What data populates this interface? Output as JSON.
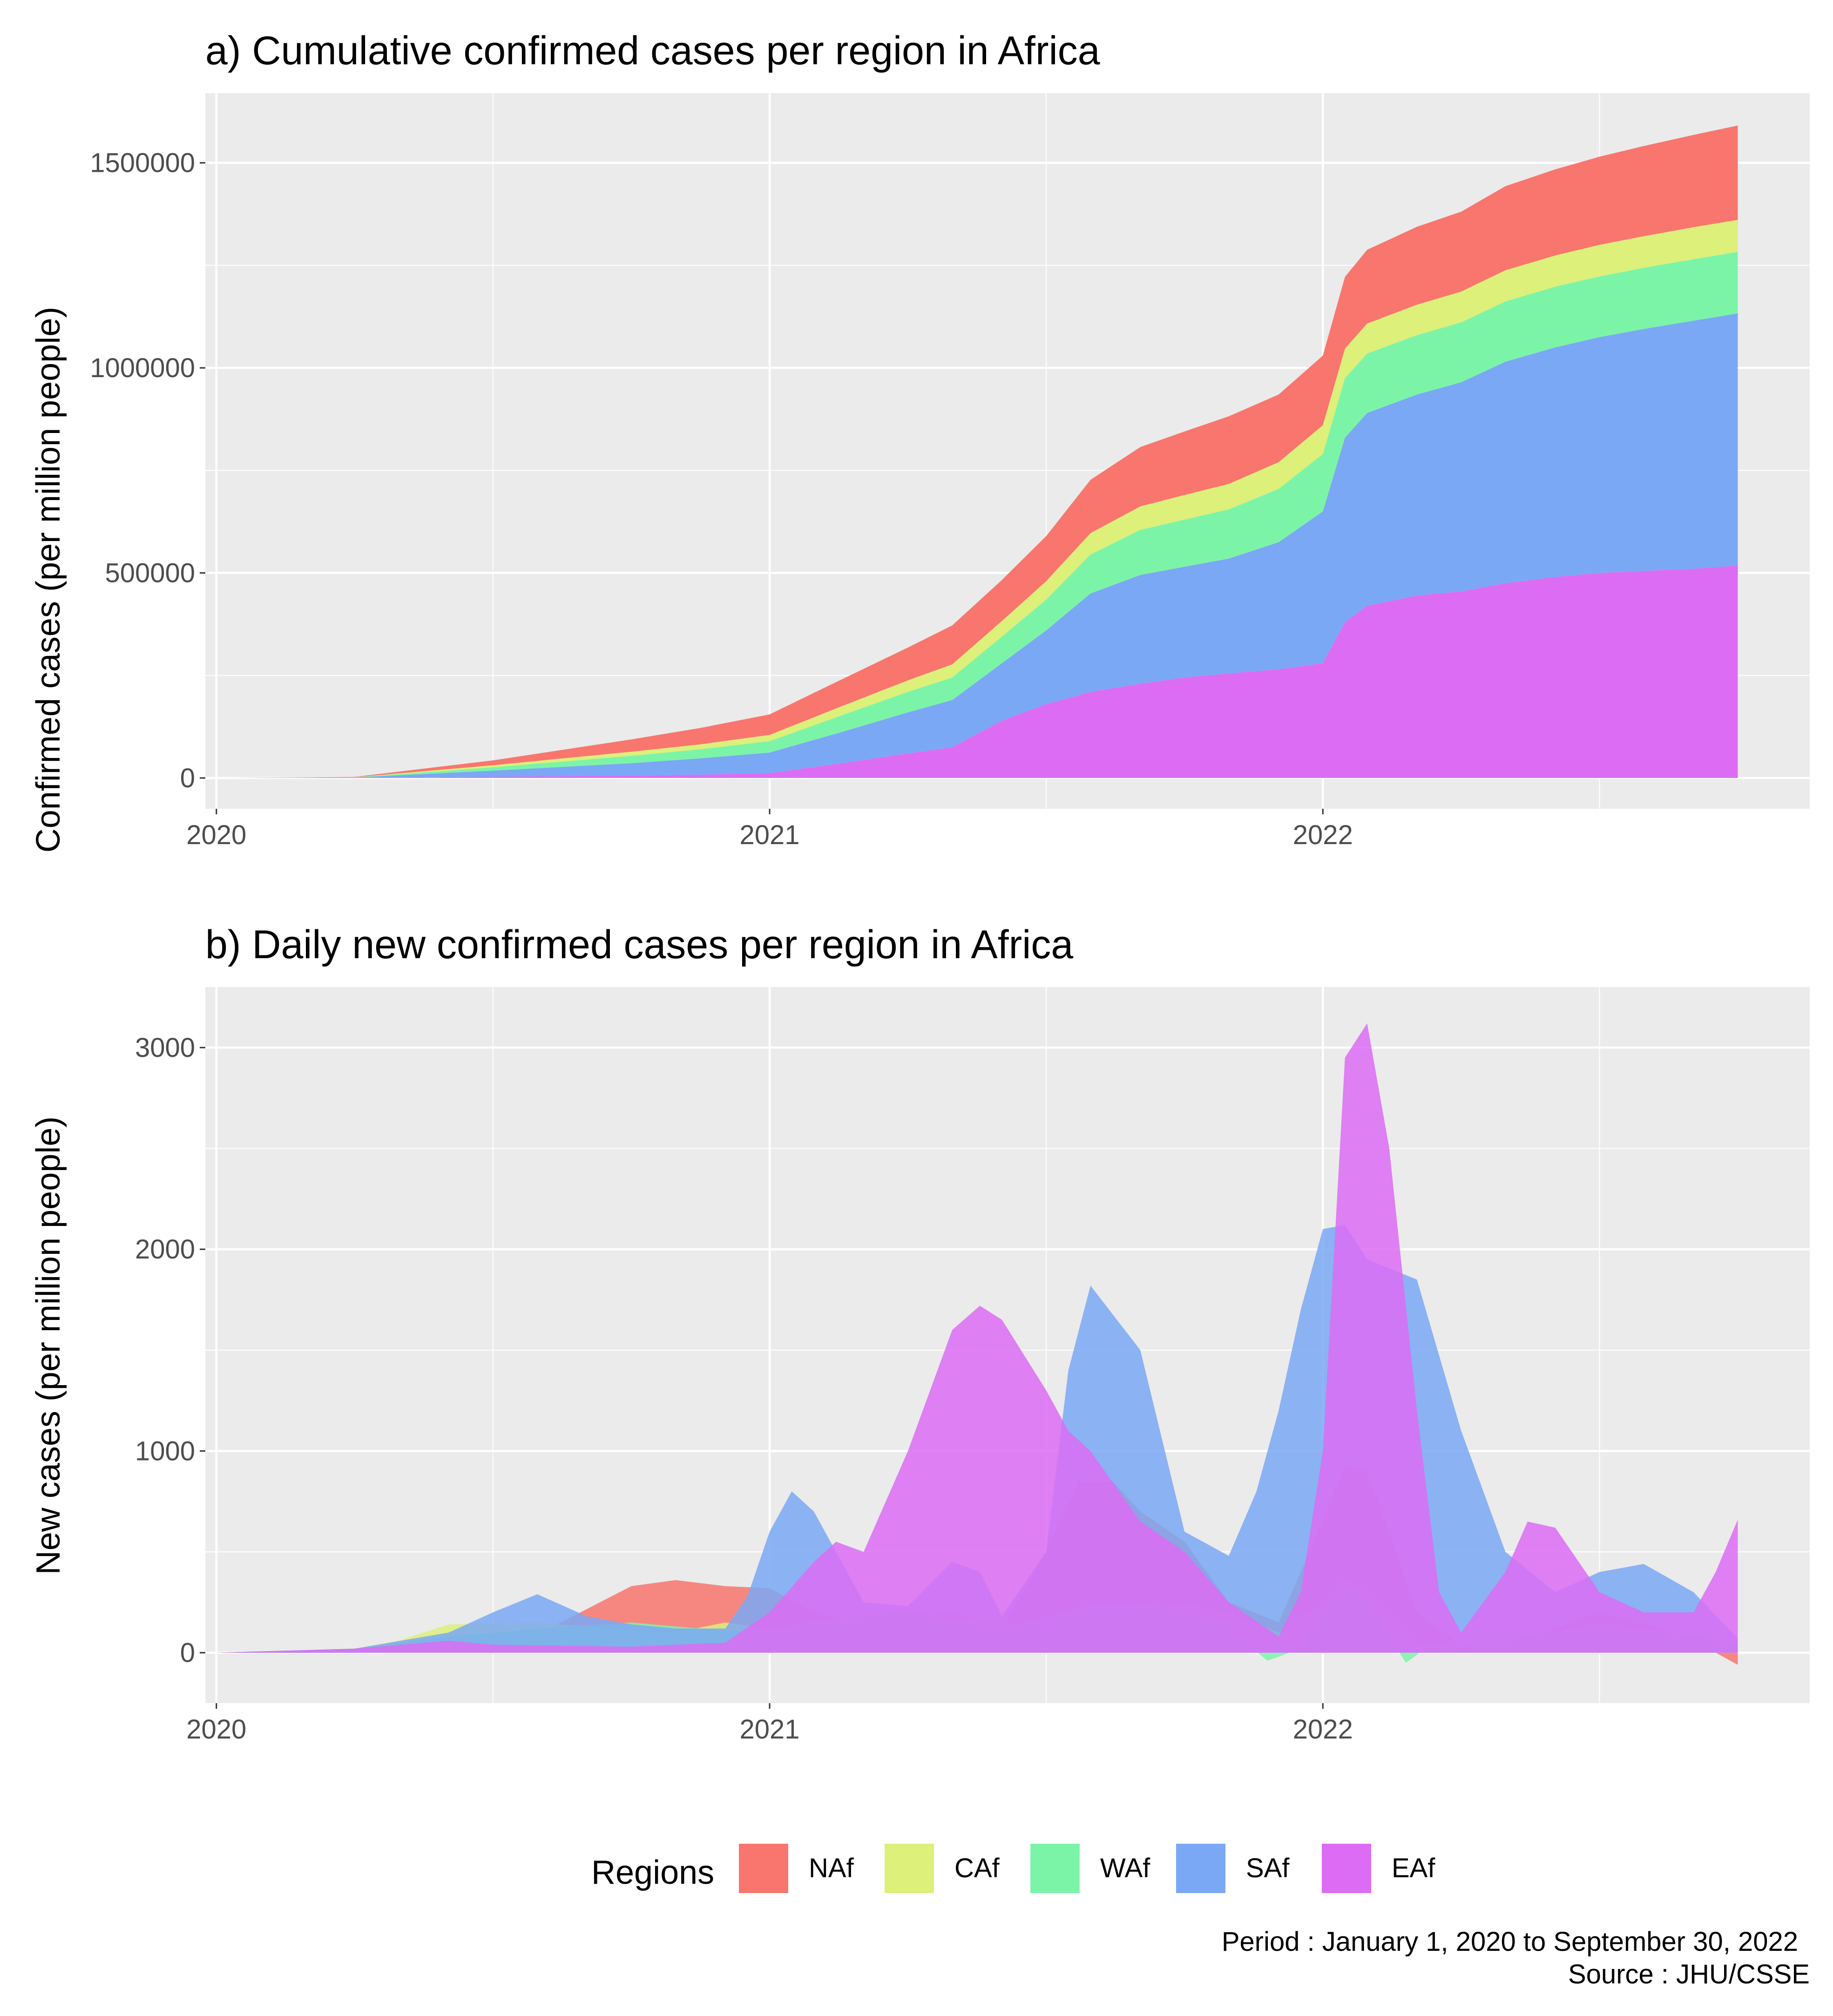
{
  "colors": {
    "NAf": "#f8766d",
    "CAf": "#dcf07a",
    "WAf": "#7cf4a8",
    "SAf": "#7aa8f4",
    "EAf": "#dc6cf4",
    "panel": "#ebebeb",
    "grid": "#ffffff"
  },
  "chart_data": [
    {
      "type": "area",
      "stacked": true,
      "title": "a) Cumulative confirmed cases per region in Africa",
      "xlabel": "",
      "ylabel": "Confirmed cases (per million people)",
      "xlim": [
        2019.98,
        2022.88
      ],
      "ylim": [
        -75000,
        1670000
      ],
      "x_ticks": [
        2020,
        2021,
        2022
      ],
      "y_ticks": [
        0,
        500000,
        1000000,
        1500000
      ],
      "x": [
        2020.0,
        2020.25,
        2020.5,
        2020.75,
        2020.875,
        2021.0,
        2021.125,
        2021.25,
        2021.33,
        2021.42,
        2021.5,
        2021.58,
        2021.67,
        2021.75,
        2021.83,
        2021.92,
        2022.0,
        2022.04,
        2022.08,
        2022.17,
        2022.25,
        2022.33,
        2022.42,
        2022.5,
        2022.58,
        2022.67,
        2022.75
      ],
      "series": [
        {
          "name": "EAf",
          "values": [
            0,
            500,
            3000,
            6000,
            8000,
            12000,
            35000,
            60000,
            75000,
            140000,
            180000,
            210000,
            230000,
            245000,
            255000,
            265000,
            280000,
            380000,
            420000,
            445000,
            455000,
            475000,
            490000,
            500000,
            505000,
            510000,
            518000
          ]
        },
        {
          "name": "SAf",
          "values": [
            0,
            800,
            15000,
            30000,
            40000,
            50000,
            75000,
            100000,
            115000,
            140000,
            180000,
            240000,
            265000,
            270000,
            280000,
            310000,
            370000,
            450000,
            470000,
            490000,
            510000,
            540000,
            560000,
            575000,
            590000,
            605000,
            615000
          ]
        },
        {
          "name": "WAf",
          "values": [
            0,
            300,
            8000,
            18000,
            22000,
            28000,
            40000,
            50000,
            55000,
            65000,
            75000,
            95000,
            110000,
            115000,
            120000,
            130000,
            140000,
            145000,
            145000,
            145000,
            146000,
            147000,
            148000,
            148000,
            149000,
            150000,
            150000
          ]
        },
        {
          "name": "CAf",
          "values": [
            0,
            200,
            5000,
            10000,
            12000,
            15000,
            22000,
            28000,
            32000,
            38000,
            45000,
            52000,
            57000,
            60000,
            62000,
            65000,
            70000,
            72000,
            73000,
            74000,
            75000,
            76000,
            76000,
            77000,
            77000,
            78000,
            78000
          ]
        },
        {
          "name": "NAf",
          "values": [
            0,
            800,
            12000,
            30000,
            40000,
            50000,
            65000,
            80000,
            95000,
            100000,
            110000,
            130000,
            145000,
            155000,
            165000,
            165000,
            170000,
            175000,
            180000,
            190000,
            195000,
            205000,
            210000,
            215000,
            220000,
            225000,
            230000
          ]
        }
      ]
    },
    {
      "type": "area",
      "stacked": false,
      "title": "b) Daily new confirmed cases per region in Africa",
      "xlabel": "",
      "ylabel": "New cases (per million people)",
      "xlim": [
        2019.98,
        2022.88
      ],
      "ylim": [
        -250,
        3300
      ],
      "x_ticks": [
        2020,
        2021,
        2022
      ],
      "y_ticks": [
        0,
        1000,
        2000,
        3000
      ],
      "series": [
        {
          "name": "NAf",
          "x": [
            2020.0,
            2020.25,
            2020.42,
            2020.58,
            2020.75,
            2020.83,
            2020.92,
            2021.0,
            2021.08,
            2021.17,
            2021.25,
            2021.33,
            2021.42,
            2021.5,
            2021.56,
            2021.62,
            2021.67,
            2021.75,
            2021.83,
            2021.92,
            2022.0,
            2022.04,
            2022.08,
            2022.17,
            2022.25,
            2022.33,
            2022.42,
            2022.5,
            2022.58,
            2022.67,
            2022.75
          ],
          "values": [
            0,
            20,
            60,
            90,
            330,
            360,
            330,
            320,
            200,
            150,
            200,
            180,
            120,
            500,
            850,
            850,
            700,
            550,
            250,
            150,
            650,
            920,
            900,
            200,
            40,
            30,
            120,
            200,
            150,
            60,
            -60
          ]
        },
        {
          "name": "CAf",
          "x": [
            2020.0,
            2020.25,
            2020.33,
            2020.42,
            2020.58,
            2020.75,
            2020.83,
            2020.92,
            2021.0,
            2021.17,
            2021.33,
            2021.42,
            2021.5,
            2021.67,
            2021.75,
            2021.83,
            2021.92,
            2022.0,
            2022.04,
            2022.08,
            2022.17,
            2022.25,
            2022.42,
            2022.5,
            2022.67,
            2022.75
          ],
          "values": [
            0,
            20,
            60,
            140,
            150,
            110,
            100,
            150,
            120,
            150,
            200,
            150,
            120,
            200,
            250,
            200,
            100,
            250,
            380,
            300,
            50,
            20,
            100,
            150,
            80,
            50
          ]
        },
        {
          "name": "WAf",
          "x": [
            2020.0,
            2020.25,
            2020.42,
            2020.58,
            2020.75,
            2020.83,
            2020.92,
            2021.0,
            2021.08,
            2021.17,
            2021.25,
            2021.33,
            2021.42,
            2021.5,
            2021.58,
            2021.67,
            2021.75,
            2021.83,
            2021.9,
            2021.96,
            2022.0,
            2022.04,
            2022.08,
            2022.15,
            2022.2,
            2022.33,
            2022.42,
            2022.5,
            2022.58,
            2022.67,
            2022.75
          ],
          "values": [
            0,
            20,
            80,
            120,
            150,
            130,
            110,
            110,
            160,
            180,
            200,
            150,
            120,
            180,
            240,
            250,
            200,
            120,
            -40,
            20,
            200,
            300,
            250,
            -50,
            50,
            60,
            100,
            120,
            100,
            60,
            30
          ]
        },
        {
          "name": "SAf",
          "x": [
            2020.0,
            2020.25,
            2020.42,
            2020.5,
            2020.58,
            2020.67,
            2020.75,
            2020.83,
            2020.92,
            2020.96,
            2021.0,
            2021.04,
            2021.08,
            2021.17,
            2021.25,
            2021.33,
            2021.38,
            2021.42,
            2021.5,
            2021.54,
            2021.58,
            2021.67,
            2021.75,
            2021.83,
            2021.88,
            2021.92,
            2021.96,
            2022.0,
            2022.04,
            2022.08,
            2022.17,
            2022.25,
            2022.33,
            2022.42,
            2022.5,
            2022.58,
            2022.67,
            2022.75
          ],
          "values": [
            0,
            20,
            100,
            200,
            290,
            180,
            140,
            120,
            120,
            280,
            600,
            800,
            700,
            250,
            230,
            450,
            400,
            180,
            500,
            1400,
            1820,
            1500,
            600,
            480,
            800,
            1200,
            1700,
            2100,
            2120,
            1950,
            1850,
            1100,
            500,
            300,
            400,
            440,
            300,
            70
          ]
        },
        {
          "name": "EAf",
          "x": [
            2020.0,
            2020.25,
            2020.42,
            2020.5,
            2020.75,
            2020.92,
            2021.0,
            2021.08,
            2021.12,
            2021.17,
            2021.25,
            2021.33,
            2021.38,
            2021.42,
            2021.5,
            2021.54,
            2021.58,
            2021.67,
            2021.75,
            2021.83,
            2021.92,
            2021.96,
            2022.0,
            2022.04,
            2022.08,
            2022.12,
            2022.17,
            2022.21,
            2022.25,
            2022.33,
            2022.37,
            2022.42,
            2022.5,
            2022.58,
            2022.67,
            2022.71,
            2022.75
          ],
          "values": [
            0,
            20,
            60,
            40,
            30,
            50,
            200,
            450,
            550,
            500,
            1000,
            1600,
            1720,
            1650,
            1300,
            1100,
            1000,
            650,
            500,
            250,
            80,
            300,
            1000,
            2950,
            3120,
            2500,
            1200,
            300,
            100,
            400,
            650,
            620,
            300,
            200,
            200,
            400,
            660
          ]
        }
      ]
    }
  ],
  "legend": {
    "title": "Regions",
    "items": [
      "NAf",
      "CAf",
      "WAf",
      "SAf",
      "EAf"
    ]
  },
  "caption": {
    "line1": "Period : January 1, 2020 to September 30, 2022",
    "line2": "Source : JHU/CSSE"
  }
}
